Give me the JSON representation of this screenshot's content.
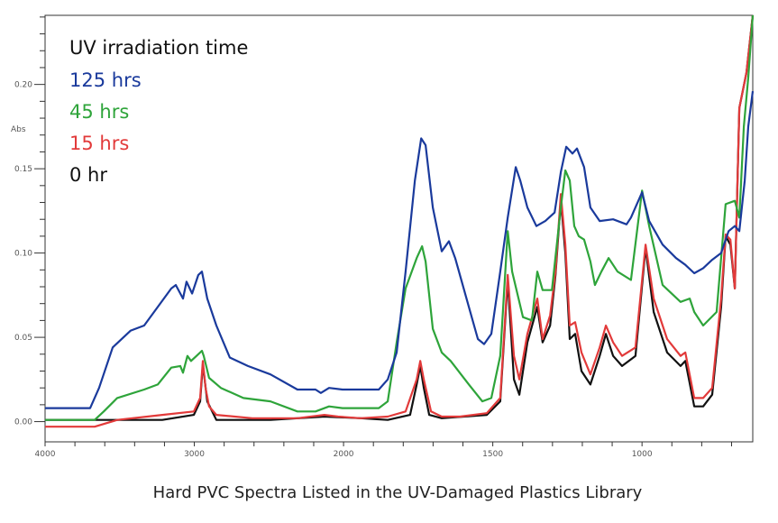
{
  "chart_data": {
    "type": "line",
    "title": "",
    "caption": "Hard PVC Spectra Listed in the UV-Damaged Plastics Library",
    "xlabel": "",
    "ylabel": "Abs",
    "xlim": [
      4000,
      629
    ],
    "x_reversed": true,
    "x_scale_break": 2000,
    "ylim": [
      -0.012,
      0.241
    ],
    "x_ticks": [
      4000,
      3000,
      2000,
      1500,
      1000
    ],
    "x_tick_labels": [
      "4000",
      "3000",
      "2000",
      "1500",
      "1000"
    ],
    "y_ticks": [
      0.0,
      0.05,
      0.1,
      0.15,
      0.2
    ],
    "y_tick_labels": [
      "0.00",
      "0.05",
      "0.10",
      "0.15",
      "0.20"
    ],
    "grid": false,
    "legend_title": "UV irradiation time",
    "legend_position": "top-left",
    "series": [
      {
        "name": "125 hrs",
        "color": "#1a3a9c",
        "points": [
          [
            4000,
            0.008
          ],
          [
            3698,
            0.008
          ],
          [
            3638,
            0.02
          ],
          [
            3547,
            0.044
          ],
          [
            3426,
            0.054
          ],
          [
            3336,
            0.057
          ],
          [
            3245,
            0.068
          ],
          [
            3154,
            0.079
          ],
          [
            3124,
            0.081
          ],
          [
            3076,
            0.073
          ],
          [
            3052,
            0.083
          ],
          [
            3015,
            0.076
          ],
          [
            2973,
            0.087
          ],
          [
            2949,
            0.089
          ],
          [
            2913,
            0.073
          ],
          [
            2852,
            0.057
          ],
          [
            2762,
            0.038
          ],
          [
            2641,
            0.033
          ],
          [
            2490,
            0.028
          ],
          [
            2309,
            0.019
          ],
          [
            2188,
            0.019
          ],
          [
            2152,
            0.017
          ],
          [
            2097,
            0.02
          ],
          [
            2007,
            0.019
          ],
          [
            1943,
            0.019
          ],
          [
            1882,
            0.019
          ],
          [
            1852,
            0.025
          ],
          [
            1822,
            0.041
          ],
          [
            1792,
            0.089
          ],
          [
            1761,
            0.143
          ],
          [
            1740,
            0.168
          ],
          [
            1725,
            0.164
          ],
          [
            1701,
            0.127
          ],
          [
            1671,
            0.101
          ],
          [
            1647,
            0.107
          ],
          [
            1626,
            0.097
          ],
          [
            1580,
            0.068
          ],
          [
            1550,
            0.049
          ],
          [
            1529,
            0.046
          ],
          [
            1505,
            0.052
          ],
          [
            1475,
            0.089
          ],
          [
            1450,
            0.121
          ],
          [
            1423,
            0.151
          ],
          [
            1408,
            0.143
          ],
          [
            1384,
            0.127
          ],
          [
            1354,
            0.116
          ],
          [
            1324,
            0.119
          ],
          [
            1293,
            0.124
          ],
          [
            1272,
            0.148
          ],
          [
            1254,
            0.163
          ],
          [
            1233,
            0.159
          ],
          [
            1218,
            0.162
          ],
          [
            1194,
            0.151
          ],
          [
            1173,
            0.127
          ],
          [
            1142,
            0.119
          ],
          [
            1097,
            0.12
          ],
          [
            1052,
            0.117
          ],
          [
            1037,
            0.121
          ],
          [
            1000,
            0.136
          ],
          [
            976,
            0.119
          ],
          [
            931,
            0.105
          ],
          [
            886,
            0.097
          ],
          [
            855,
            0.093
          ],
          [
            825,
            0.088
          ],
          [
            795,
            0.091
          ],
          [
            765,
            0.096
          ],
          [
            735,
            0.1
          ],
          [
            710,
            0.113
          ],
          [
            689,
            0.116
          ],
          [
            674,
            0.113
          ],
          [
            656,
            0.143
          ],
          [
            644,
            0.175
          ],
          [
            629,
            0.196
          ]
        ]
      },
      {
        "name": "45 hrs",
        "color": "#2ea43a",
        "points": [
          [
            4000,
            0.001
          ],
          [
            3668,
            0.001
          ],
          [
            3607,
            0.006
          ],
          [
            3517,
            0.014
          ],
          [
            3336,
            0.019
          ],
          [
            3245,
            0.022
          ],
          [
            3154,
            0.032
          ],
          [
            3094,
            0.033
          ],
          [
            3076,
            0.029
          ],
          [
            3046,
            0.039
          ],
          [
            3022,
            0.036
          ],
          [
            2985,
            0.039
          ],
          [
            2949,
            0.042
          ],
          [
            2937,
            0.039
          ],
          [
            2901,
            0.026
          ],
          [
            2822,
            0.02
          ],
          [
            2671,
            0.014
          ],
          [
            2490,
            0.012
          ],
          [
            2309,
            0.006
          ],
          [
            2188,
            0.006
          ],
          [
            2097,
            0.009
          ],
          [
            2007,
            0.008
          ],
          [
            1882,
            0.008
          ],
          [
            1852,
            0.012
          ],
          [
            1822,
            0.047
          ],
          [
            1792,
            0.079
          ],
          [
            1755,
            0.097
          ],
          [
            1737,
            0.104
          ],
          [
            1725,
            0.095
          ],
          [
            1701,
            0.055
          ],
          [
            1671,
            0.041
          ],
          [
            1641,
            0.036
          ],
          [
            1580,
            0.022
          ],
          [
            1535,
            0.012
          ],
          [
            1505,
            0.014
          ],
          [
            1475,
            0.039
          ],
          [
            1450,
            0.113
          ],
          [
            1435,
            0.089
          ],
          [
            1399,
            0.062
          ],
          [
            1369,
            0.06
          ],
          [
            1351,
            0.089
          ],
          [
            1333,
            0.078
          ],
          [
            1302,
            0.078
          ],
          [
            1272,
            0.127
          ],
          [
            1257,
            0.149
          ],
          [
            1242,
            0.143
          ],
          [
            1227,
            0.116
          ],
          [
            1212,
            0.11
          ],
          [
            1194,
            0.108
          ],
          [
            1173,
            0.095
          ],
          [
            1158,
            0.081
          ],
          [
            1136,
            0.089
          ],
          [
            1112,
            0.097
          ],
          [
            1082,
            0.089
          ],
          [
            1037,
            0.084
          ],
          [
            1000,
            0.137
          ],
          [
            976,
            0.116
          ],
          [
            931,
            0.081
          ],
          [
            871,
            0.071
          ],
          [
            840,
            0.073
          ],
          [
            825,
            0.065
          ],
          [
            795,
            0.057
          ],
          [
            750,
            0.065
          ],
          [
            720,
            0.129
          ],
          [
            689,
            0.131
          ],
          [
            674,
            0.121
          ],
          [
            659,
            0.175
          ],
          [
            644,
            0.204
          ],
          [
            629,
            0.241
          ]
        ]
      },
      {
        "name": "15 hrs",
        "color": "#e23a3a",
        "points": [
          [
            4000,
            -0.003
          ],
          [
            3668,
            -0.003
          ],
          [
            3517,
            0.001
          ],
          [
            3215,
            0.004
          ],
          [
            3003,
            0.006
          ],
          [
            2961,
            0.014
          ],
          [
            2943,
            0.036
          ],
          [
            2925,
            0.02
          ],
          [
            2901,
            0.009
          ],
          [
            2852,
            0.004
          ],
          [
            2611,
            0.002
          ],
          [
            2309,
            0.002
          ],
          [
            2128,
            0.004
          ],
          [
            2037,
            0.003
          ],
          [
            1943,
            0.002
          ],
          [
            1852,
            0.003
          ],
          [
            1792,
            0.006
          ],
          [
            1755,
            0.025
          ],
          [
            1743,
            0.036
          ],
          [
            1731,
            0.025
          ],
          [
            1707,
            0.006
          ],
          [
            1671,
            0.003
          ],
          [
            1610,
            0.003
          ],
          [
            1520,
            0.005
          ],
          [
            1475,
            0.014
          ],
          [
            1450,
            0.087
          ],
          [
            1429,
            0.039
          ],
          [
            1411,
            0.025
          ],
          [
            1384,
            0.052
          ],
          [
            1351,
            0.073
          ],
          [
            1333,
            0.049
          ],
          [
            1308,
            0.063
          ],
          [
            1290,
            0.089
          ],
          [
            1272,
            0.135
          ],
          [
            1257,
            0.105
          ],
          [
            1242,
            0.057
          ],
          [
            1224,
            0.059
          ],
          [
            1203,
            0.041
          ],
          [
            1173,
            0.028
          ],
          [
            1142,
            0.044
          ],
          [
            1121,
            0.057
          ],
          [
            1097,
            0.047
          ],
          [
            1067,
            0.039
          ],
          [
            1022,
            0.044
          ],
          [
            988,
            0.105
          ],
          [
            961,
            0.073
          ],
          [
            916,
            0.049
          ],
          [
            871,
            0.039
          ],
          [
            855,
            0.041
          ],
          [
            825,
            0.014
          ],
          [
            795,
            0.014
          ],
          [
            765,
            0.02
          ],
          [
            735,
            0.073
          ],
          [
            720,
            0.111
          ],
          [
            704,
            0.108
          ],
          [
            689,
            0.079
          ],
          [
            674,
            0.186
          ],
          [
            650,
            0.207
          ],
          [
            629,
            0.241
          ]
        ]
      },
      {
        "name": "0 hr",
        "color": "#111111",
        "points": [
          [
            4000,
            0.001
          ],
          [
            3668,
            0.001
          ],
          [
            3215,
            0.001
          ],
          [
            3003,
            0.004
          ],
          [
            2961,
            0.012
          ],
          [
            2943,
            0.034
          ],
          [
            2913,
            0.012
          ],
          [
            2852,
            0.001
          ],
          [
            2490,
            0.001
          ],
          [
            2128,
            0.003
          ],
          [
            1943,
            0.002
          ],
          [
            1852,
            0.001
          ],
          [
            1777,
            0.004
          ],
          [
            1755,
            0.022
          ],
          [
            1743,
            0.033
          ],
          [
            1731,
            0.02
          ],
          [
            1713,
            0.004
          ],
          [
            1671,
            0.002
          ],
          [
            1520,
            0.004
          ],
          [
            1475,
            0.012
          ],
          [
            1450,
            0.084
          ],
          [
            1429,
            0.025
          ],
          [
            1411,
            0.016
          ],
          [
            1384,
            0.047
          ],
          [
            1351,
            0.068
          ],
          [
            1333,
            0.047
          ],
          [
            1308,
            0.057
          ],
          [
            1290,
            0.087
          ],
          [
            1272,
            0.132
          ],
          [
            1257,
            0.1
          ],
          [
            1242,
            0.049
          ],
          [
            1224,
            0.052
          ],
          [
            1203,
            0.03
          ],
          [
            1173,
            0.022
          ],
          [
            1142,
            0.039
          ],
          [
            1121,
            0.052
          ],
          [
            1097,
            0.039
          ],
          [
            1067,
            0.033
          ],
          [
            1022,
            0.039
          ],
          [
            988,
            0.103
          ],
          [
            961,
            0.065
          ],
          [
            916,
            0.041
          ],
          [
            871,
            0.033
          ],
          [
            855,
            0.036
          ],
          [
            825,
            0.009
          ],
          [
            795,
            0.009
          ],
          [
            765,
            0.016
          ],
          [
            735,
            0.068
          ],
          [
            720,
            0.11
          ],
          [
            704,
            0.105
          ],
          [
            689,
            0.079
          ],
          [
            674,
            0.186
          ],
          [
            650,
            0.207
          ],
          [
            629,
            0.241
          ]
        ]
      }
    ]
  }
}
